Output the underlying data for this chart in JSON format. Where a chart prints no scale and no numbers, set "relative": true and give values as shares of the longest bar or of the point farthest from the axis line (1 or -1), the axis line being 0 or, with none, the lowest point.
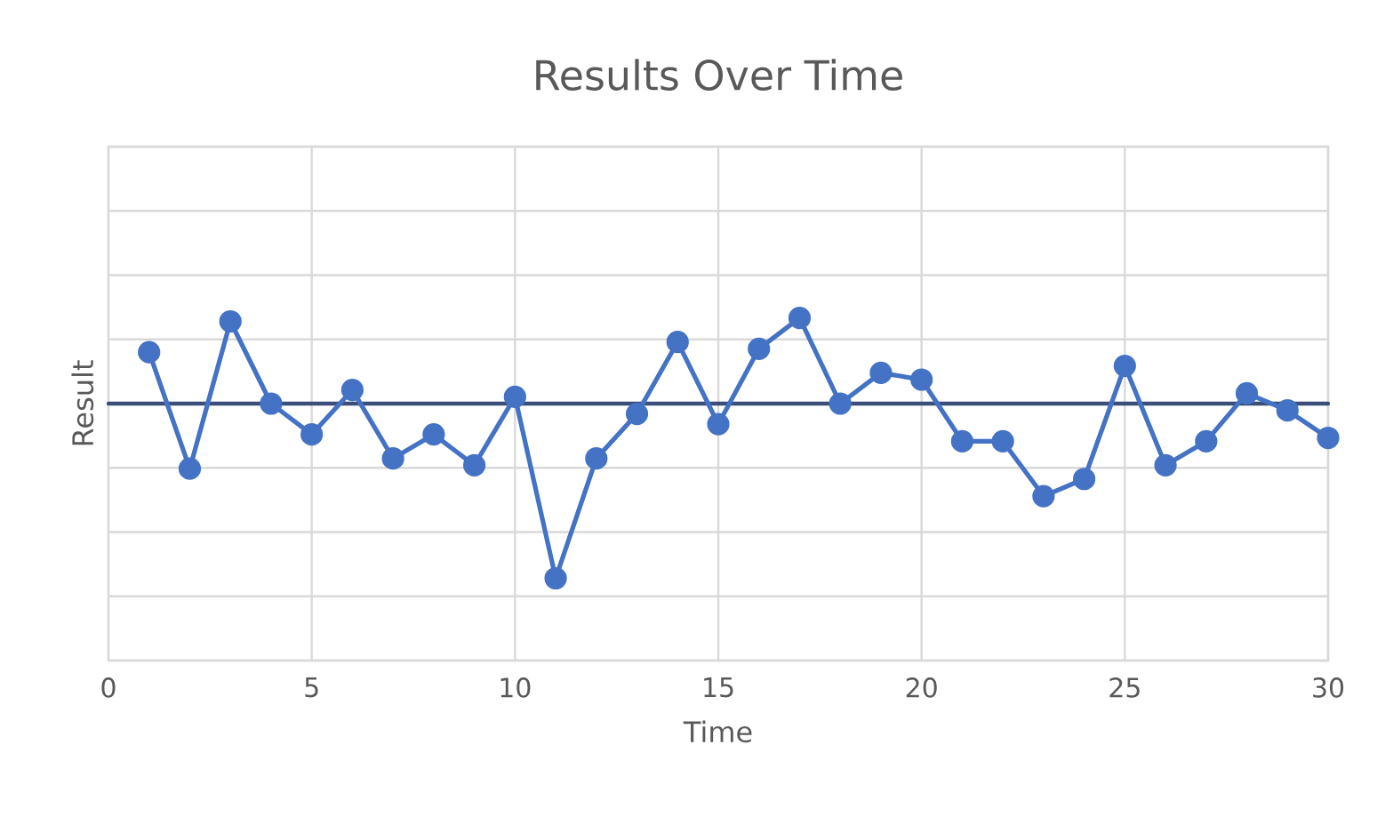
{
  "chart_data": {
    "type": "line",
    "title": "Results Over Time",
    "xlabel": "Time",
    "ylabel": "Result",
    "relative": true,
    "x": [
      1,
      2,
      3,
      4,
      5,
      6,
      7,
      8,
      9,
      10,
      11,
      12,
      13,
      14,
      15,
      16,
      17,
      18,
      19,
      20,
      21,
      22,
      23,
      24,
      25,
      26,
      27,
      28,
      29,
      30
    ],
    "series": [
      {
        "color": "#4472c4",
        "values": [
          0.9,
          0.56,
          0.99,
          0.75,
          0.66,
          0.79,
          0.59,
          0.66,
          0.57,
          0.77,
          0.24,
          0.59,
          0.72,
          0.93,
          0.69,
          0.91,
          1.0,
          0.75,
          0.84,
          0.82,
          0.64,
          0.64,
          0.48,
          0.53,
          0.86,
          0.57,
          0.64,
          0.78,
          0.73,
          0.65
        ]
      }
    ],
    "xlim": [
      0,
      30
    ],
    "xticks": [
      0,
      5,
      10,
      15,
      20,
      25,
      30
    ],
    "ref_lines": [
      {
        "axis": "y",
        "value": 0.75,
        "color": "#3b4e7a"
      }
    ],
    "grid": true,
    "marker": "circle",
    "line_style": "solid"
  }
}
